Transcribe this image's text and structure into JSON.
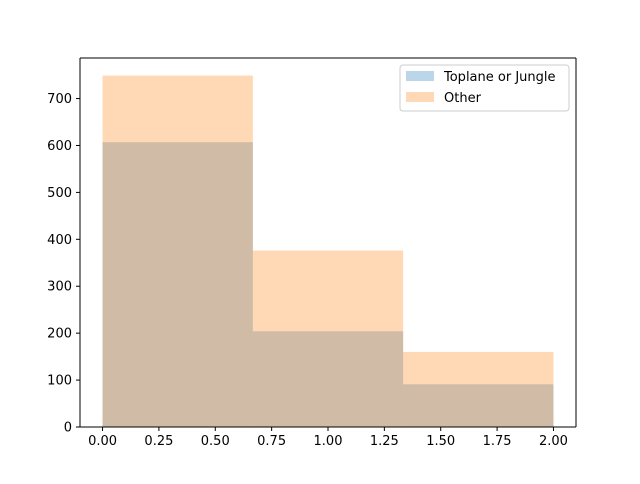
{
  "chart_data": {
    "type": "bar",
    "title": "",
    "xlabel": "",
    "ylabel": "",
    "bin_edges": [
      0.0,
      0.6667,
      1.3333,
      2.0
    ],
    "series": [
      {
        "name": "Toplane or Jungle",
        "values": [
          607,
          204,
          91
        ],
        "color": "#1f77b4",
        "alpha": 0.3
      },
      {
        "name": "Other",
        "values": [
          749,
          376,
          160
        ],
        "color": "#ff7f0e",
        "alpha": 0.3
      }
    ],
    "xlim": [
      -0.1,
      2.1
    ],
    "ylim": [
      0,
      786.45
    ],
    "xticks": [
      0.0,
      0.25,
      0.5,
      0.75,
      1.0,
      1.25,
      1.5,
      1.75,
      2.0
    ],
    "xtick_labels": [
      "0.00",
      "0.25",
      "0.50",
      "0.75",
      "1.00",
      "1.25",
      "1.50",
      "1.75",
      "2.00"
    ],
    "yticks": [
      0,
      100,
      200,
      300,
      400,
      500,
      600,
      700
    ],
    "ytick_labels": [
      "0",
      "100",
      "200",
      "300",
      "400",
      "500",
      "600",
      "700"
    ],
    "grid": false,
    "legend_position": "top-right"
  }
}
